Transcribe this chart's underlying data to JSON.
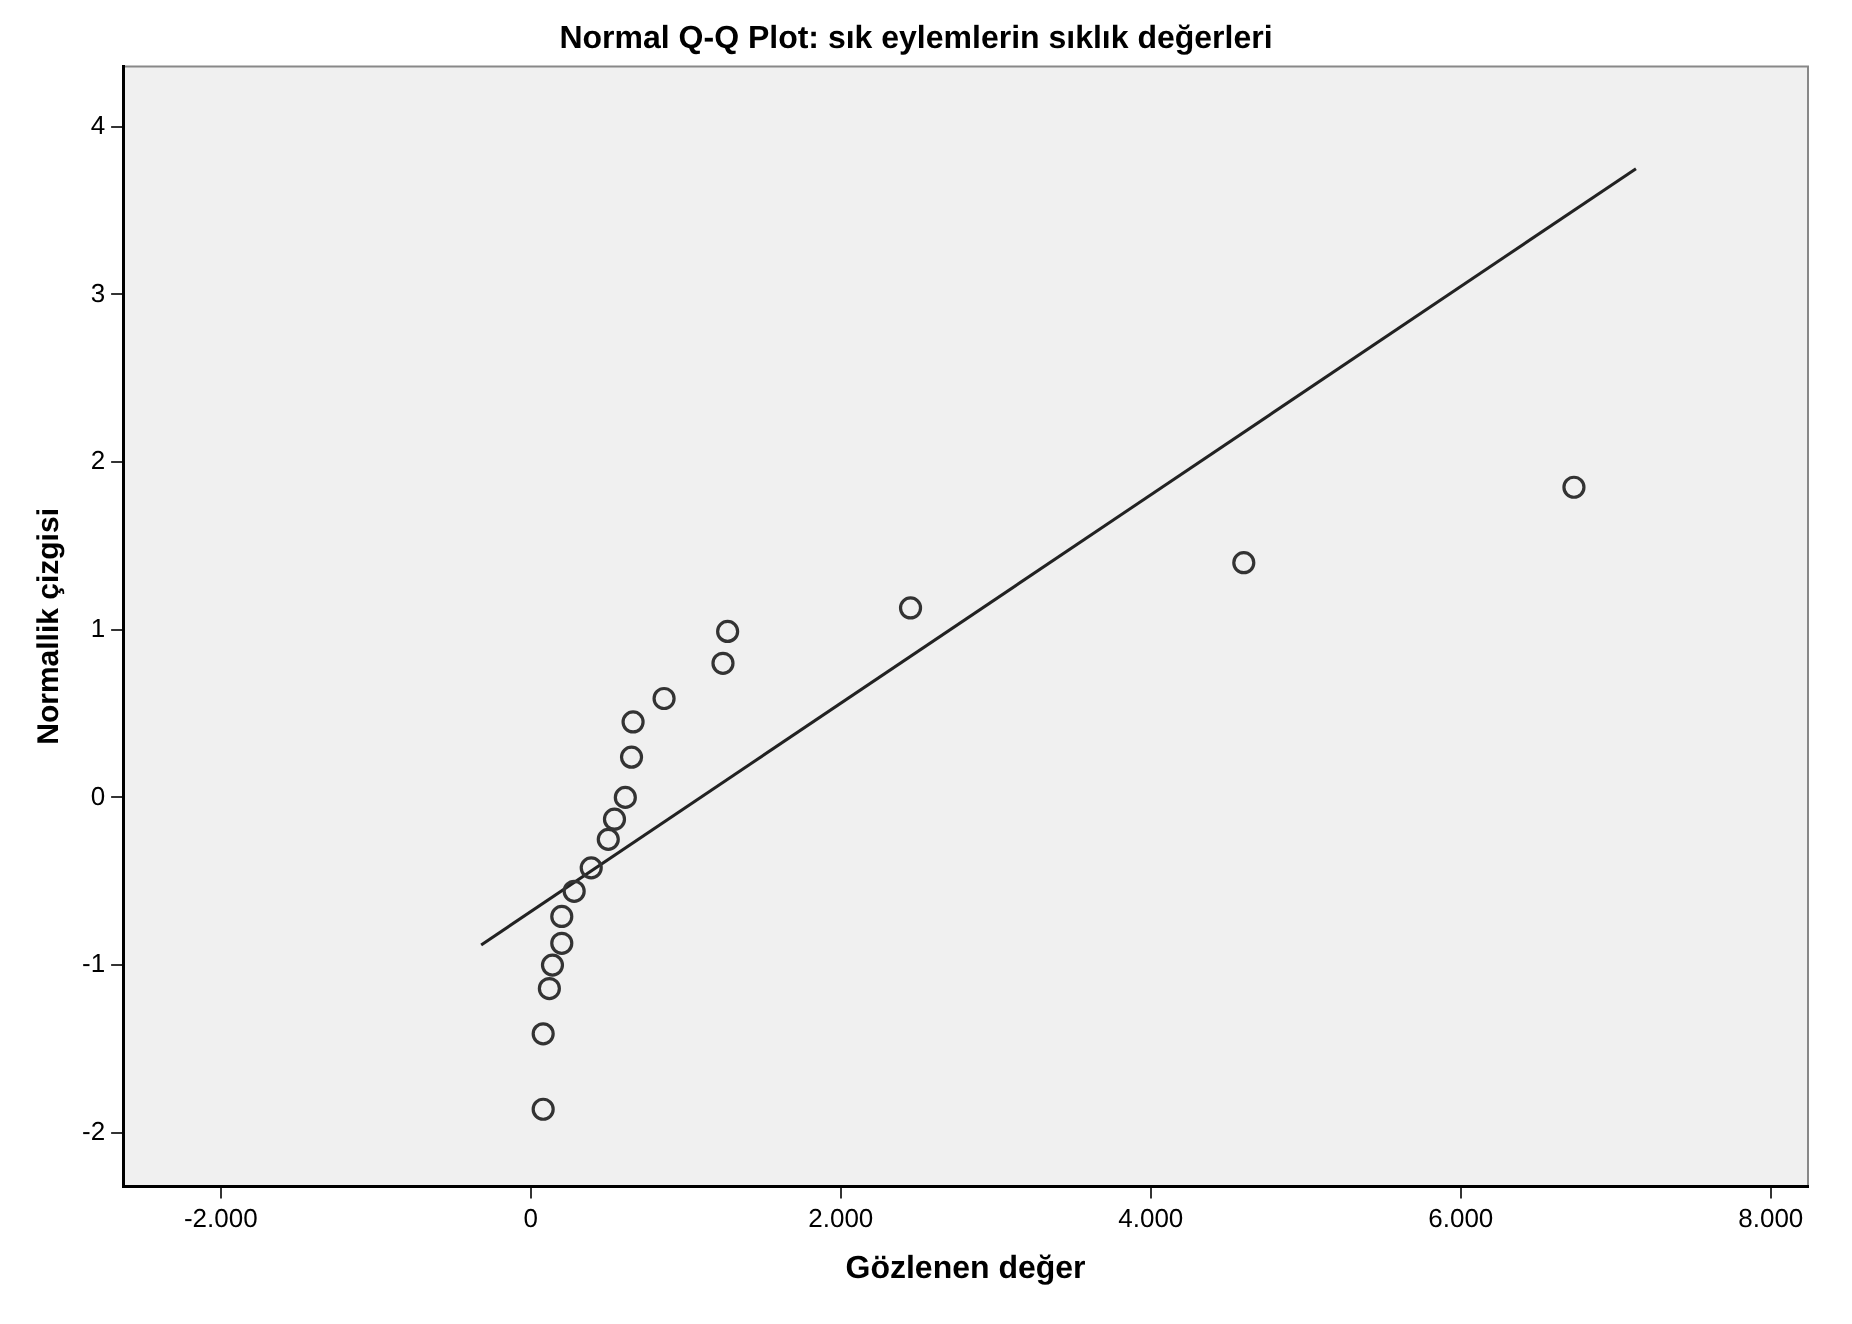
{
  "chart_data": {
    "type": "scatter",
    "title": "Normal Q-Q Plot: sık eylemlerin sıklık değerleri",
    "xlabel": "Gözlenen değer",
    "ylabel": "Normallik çizgisi",
    "xlim": [
      -2630,
      8240
    ],
    "ylim": [
      -2.32,
      4.36
    ],
    "xticks": [
      {
        "value": -2000,
        "label": "-2.000"
      },
      0,
      {
        "value": 2000,
        "label": "2.000"
      },
      {
        "value": 4000,
        "label": "4.000"
      },
      {
        "value": 6000,
        "label": "6.000"
      },
      {
        "value": 8000,
        "label": "8.000"
      }
    ],
    "yticks": [
      -2,
      -1,
      0,
      1,
      2,
      3,
      4
    ],
    "grid": false,
    "legend": false,
    "marker": "circle",
    "series": [
      {
        "type": "scatter",
        "color": "#333333",
        "x": [
          80,
          80,
          120,
          140,
          200,
          200,
          280,
          390,
          500,
          540,
          610,
          650,
          660,
          860,
          1240,
          1270,
          2450,
          4600,
          6730
        ],
        "values": [
          -1.86,
          -1.41,
          -1.14,
          -1.0,
          -0.87,
          -0.71,
          -0.56,
          -0.42,
          -0.25,
          -0.13,
          0.0,
          0.24,
          0.45,
          0.59,
          0.8,
          0.99,
          1.13,
          1.4,
          1.85
        ]
      },
      {
        "type": "line",
        "color": "#222222",
        "x": [
          -320,
          7130
        ],
        "values": [
          -0.88,
          3.75
        ],
        "marker": "none",
        "line_style": "solid"
      }
    ]
  }
}
